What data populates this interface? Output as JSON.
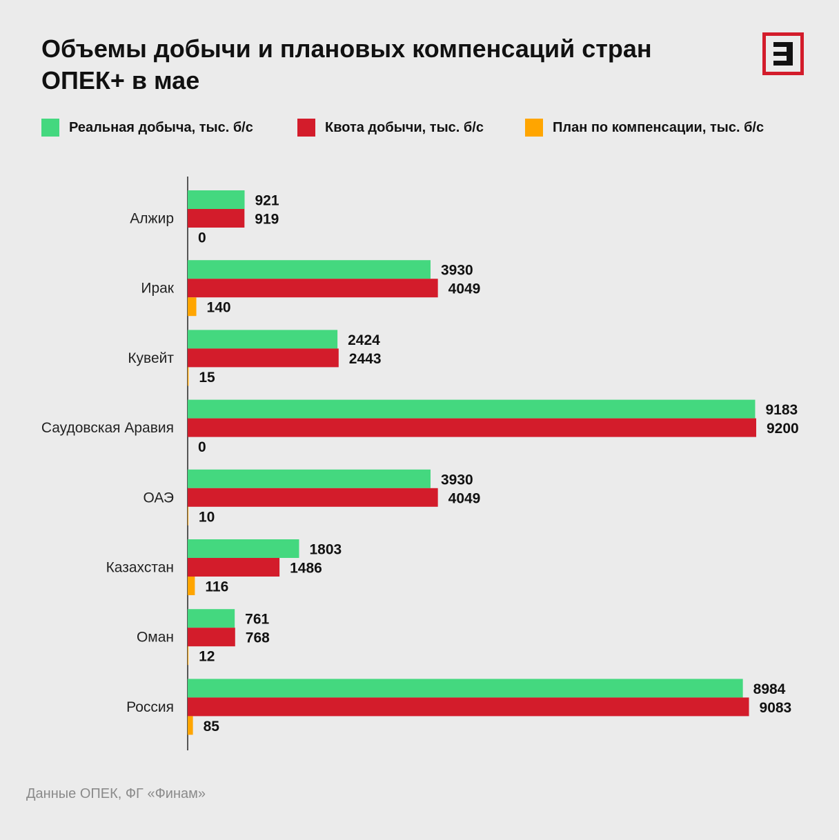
{
  "title_line1": "Объемы добычи и плановых компенсаций стран",
  "title_line2": "ОПЕК+ в мае",
  "logo": {
    "icon": "e-letter-logo",
    "color": "#d31c2b"
  },
  "source": "Данные ОПЕК, ФГ «Финам»",
  "chart_data": {
    "type": "bar",
    "orientation": "horizontal",
    "categories": [
      "Алжир",
      "Ирак",
      "Кувейт",
      "Саудовская Аравия",
      "ОАЭ",
      "Казахстан",
      "Оман",
      "Россия"
    ],
    "series": [
      {
        "name": "Реальная добыча, тыс. б/с",
        "color": "#44d87f",
        "values": [
          921,
          3930,
          2424,
          9183,
          3930,
          1803,
          761,
          8984
        ]
      },
      {
        "name": "Квота добычи, тыс. б/с",
        "color": "#d31c2b",
        "values": [
          919,
          4049,
          2443,
          9200,
          4049,
          1486,
          768,
          9083
        ]
      },
      {
        "name": "План по компенсации, тыс. б/с",
        "color": "#ffa500",
        "values": [
          0,
          140,
          15,
          0,
          10,
          116,
          12,
          85
        ]
      }
    ],
    "title": "Объемы добычи и плановых компенсаций стран ОПЕК+ в мае",
    "xlabel": "",
    "ylabel": "",
    "xlim": [
      0,
      9200
    ],
    "grid": false,
    "data_labels": true,
    "legend_position": "top"
  }
}
